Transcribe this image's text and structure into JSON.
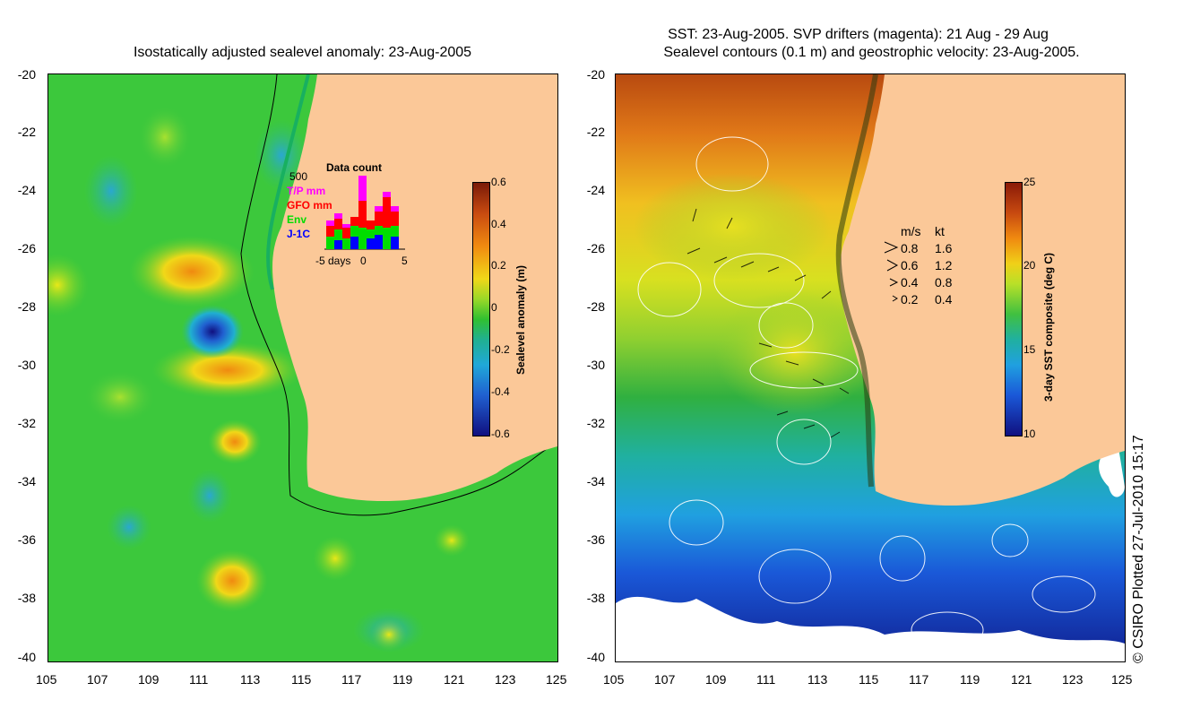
{
  "left_panel": {
    "title": "Isostatically adjusted sealevel anomaly: 23-Aug-2005",
    "y_ticks": [
      "-20",
      "-22",
      "-24",
      "-26",
      "-28",
      "-30",
      "-32",
      "-34",
      "-36",
      "-38",
      "-40"
    ],
    "x_ticks": [
      "105",
      "107",
      "109",
      "111",
      "113",
      "115",
      "117",
      "119",
      "121",
      "123",
      "125"
    ],
    "colorbar": {
      "label": "Sealevel anomaly (m)",
      "ticks": [
        "0.6",
        "0.4",
        "0.2",
        "0",
        "-0.2",
        "-0.4",
        "-0.6"
      ]
    },
    "data_count": {
      "title": "Data count",
      "y_max_label": "500",
      "legend": [
        {
          "label": "T/P mm",
          "color": "#ff00ff"
        },
        {
          "label": "GFO mm",
          "color": "#ff0000"
        },
        {
          "label": "Env",
          "color": "#00dd00"
        },
        {
          "label": "J-1C",
          "color": "#0000ff"
        }
      ],
      "x_labels": {
        "left": "-5",
        "mid_text": "days",
        "zero": "0",
        "right": "5"
      }
    }
  },
  "right_panel": {
    "title_line1": "SST: 23-Aug-2005. SVP drifters (magenta): 21 Aug - 29 Aug",
    "title_line2": "Sealevel contours (0.1 m) and geostrophic velocity: 23-Aug-2005.",
    "y_ticks": [
      "-20",
      "-22",
      "-24",
      "-26",
      "-28",
      "-30",
      "-32",
      "-34",
      "-36",
      "-38",
      "-40"
    ],
    "x_ticks": [
      "105",
      "107",
      "109",
      "111",
      "113",
      "115",
      "117",
      "119",
      "121",
      "123",
      "125"
    ],
    "colorbar": {
      "label": "3-day SST composite (deg C)",
      "ticks": [
        "25",
        "20",
        "15",
        "10"
      ]
    },
    "velocity_legend": {
      "header_ms": "m/s",
      "header_kt": "kt",
      "rows": [
        {
          "ms": "0.8",
          "kt": "1.6"
        },
        {
          "ms": "0.6",
          "kt": "1.2"
        },
        {
          "ms": "0.4",
          "kt": "0.8"
        },
        {
          "ms": "0.2",
          "kt": "0.4"
        }
      ]
    }
  },
  "copyright": "© CSIRO Plotted 27-Jul-2010 15:17",
  "colors": {
    "land": "#fbc898",
    "ssha_green": "#22c23a",
    "ssha_yellow": "#e8e81a",
    "sst_red": "#a83810",
    "sst_blue": "#1a4ad8"
  }
}
